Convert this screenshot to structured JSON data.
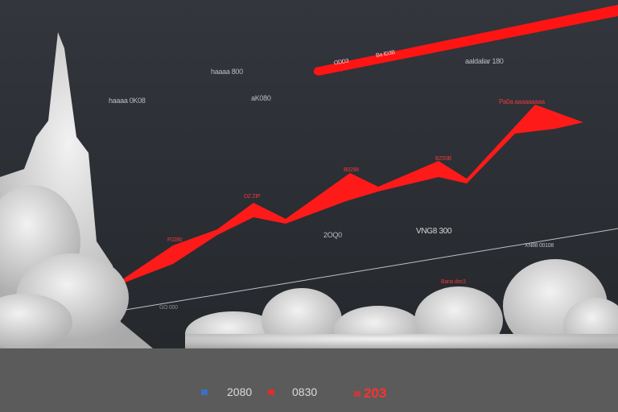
{
  "colors": {
    "background": "#2b2e34",
    "line": "#ff1a1a",
    "cloud": "#e6e6e6",
    "footer": "#5b5b5b",
    "legend_blue": "#3a6fc4",
    "legend_red": "#d83030"
  },
  "labels": {
    "band_a": "ODD3",
    "band_b": "Ba ID3B",
    "top_right": "aaldaliar 180",
    "left_a": "haaaa 0K08",
    "mid_a": "haaaa 800",
    "mid_b": "aK080",
    "peak_1": "DZ ZIP",
    "peak_2": "F0280",
    "peak_3": "B0298",
    "peak_4": "BZ93B",
    "peak_5": "Pa0a  aaaaaaaaa",
    "axis_a": "2OQ0",
    "axis_b": "VNG8 300",
    "axis_c": "XN88 00108",
    "red_note": "Bana dec3",
    "low_left": "GO 000"
  },
  "legend": {
    "item1": "2080",
    "item2": "0830",
    "item3": "203"
  }
}
